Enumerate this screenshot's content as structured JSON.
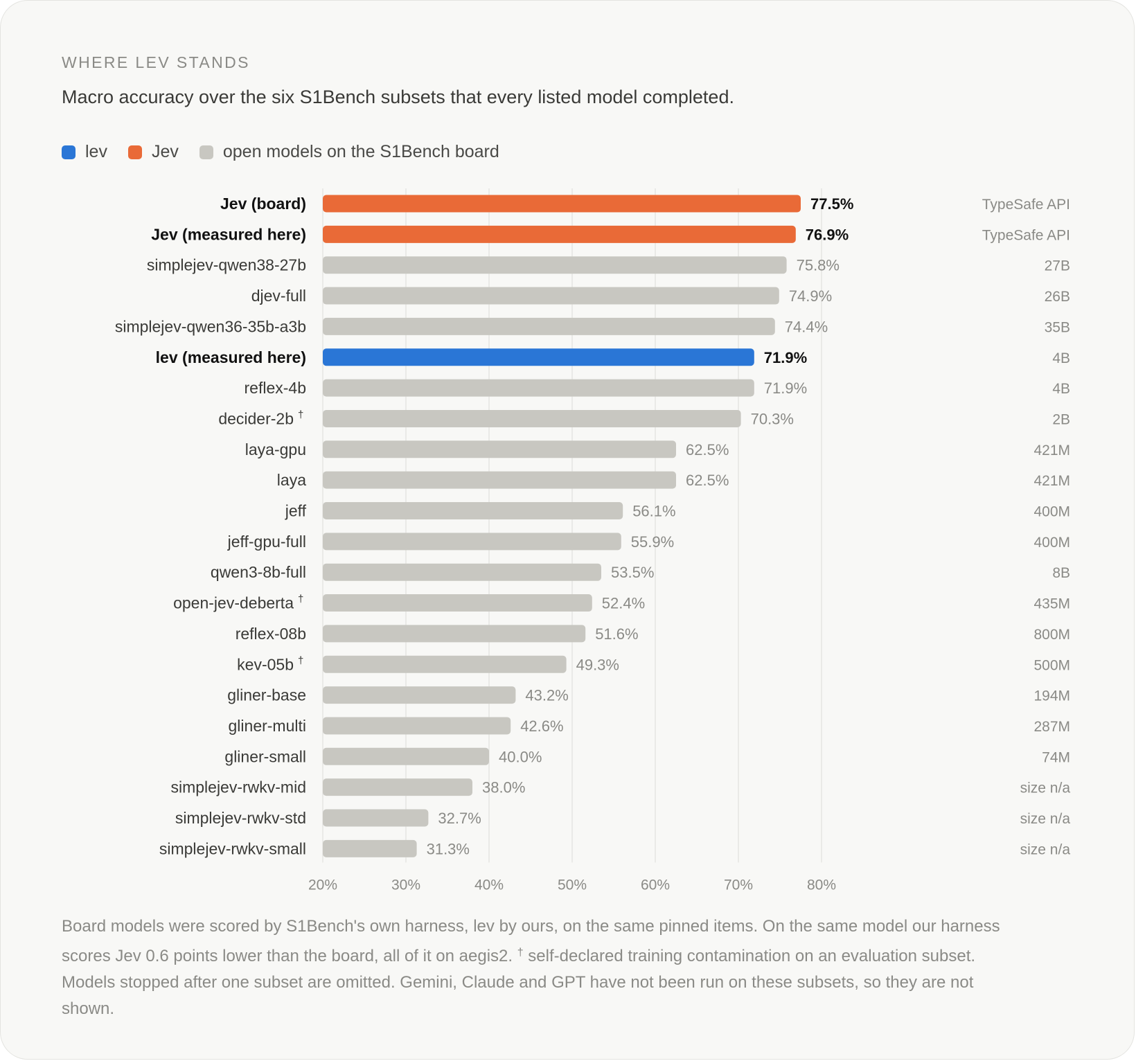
{
  "eyebrow": "WHERE LEV STANDS",
  "subtitle": "Macro accuracy over the six S1Bench subsets that every listed model completed.",
  "legend": [
    {
      "label": "lev",
      "color": "#2a76d6"
    },
    {
      "label": "Jev",
      "color": "#e96a37"
    },
    {
      "label": "open models on the S1Bench board",
      "color": "#c8c7c1"
    }
  ],
  "colors": {
    "lev": "#2a76d6",
    "jev": "#e96a37",
    "board": "#c8c7c1"
  },
  "chart_data": {
    "type": "bar",
    "orientation": "horizontal",
    "xlim": [
      20,
      80
    ],
    "x_ticks": [
      20,
      30,
      40,
      50,
      60,
      70,
      80
    ],
    "x_tick_labels": [
      "20%",
      "30%",
      "40%",
      "50%",
      "60%",
      "70%",
      "80%"
    ],
    "grid": true,
    "legend_position": "top-left",
    "rows": [
      {
        "label": "Jev (board)",
        "value": 77.5,
        "value_label": "77.5%",
        "size": "TypeSafe API",
        "group": "jev",
        "bold": true,
        "dagger": false
      },
      {
        "label": "Jev (measured here)",
        "value": 76.9,
        "value_label": "76.9%",
        "size": "TypeSafe API",
        "group": "jev",
        "bold": true,
        "dagger": false
      },
      {
        "label": "simplejev-qwen38-27b",
        "value": 75.8,
        "value_label": "75.8%",
        "size": "27B",
        "group": "board",
        "bold": false,
        "dagger": false
      },
      {
        "label": "djev-full",
        "value": 74.9,
        "value_label": "74.9%",
        "size": "26B",
        "group": "board",
        "bold": false,
        "dagger": false
      },
      {
        "label": "simplejev-qwen36-35b-a3b",
        "value": 74.4,
        "value_label": "74.4%",
        "size": "35B",
        "group": "board",
        "bold": false,
        "dagger": false
      },
      {
        "label": "lev (measured here)",
        "value": 71.9,
        "value_label": "71.9%",
        "size": "4B",
        "group": "lev",
        "bold": true,
        "dagger": false
      },
      {
        "label": "reflex-4b",
        "value": 71.9,
        "value_label": "71.9%",
        "size": "4B",
        "group": "board",
        "bold": false,
        "dagger": false
      },
      {
        "label": "decider-2b",
        "value": 70.3,
        "value_label": "70.3%",
        "size": "2B",
        "group": "board",
        "bold": false,
        "dagger": true
      },
      {
        "label": "laya-gpu",
        "value": 62.5,
        "value_label": "62.5%",
        "size": "421M",
        "group": "board",
        "bold": false,
        "dagger": false
      },
      {
        "label": "laya",
        "value": 62.5,
        "value_label": "62.5%",
        "size": "421M",
        "group": "board",
        "bold": false,
        "dagger": false
      },
      {
        "label": "jeff",
        "value": 56.1,
        "value_label": "56.1%",
        "size": "400M",
        "group": "board",
        "bold": false,
        "dagger": false
      },
      {
        "label": "jeff-gpu-full",
        "value": 55.9,
        "value_label": "55.9%",
        "size": "400M",
        "group": "board",
        "bold": false,
        "dagger": false
      },
      {
        "label": "qwen3-8b-full",
        "value": 53.5,
        "value_label": "53.5%",
        "size": "8B",
        "group": "board",
        "bold": false,
        "dagger": false
      },
      {
        "label": "open-jev-deberta",
        "value": 52.4,
        "value_label": "52.4%",
        "size": "435M",
        "group": "board",
        "bold": false,
        "dagger": true
      },
      {
        "label": "reflex-08b",
        "value": 51.6,
        "value_label": "51.6%",
        "size": "800M",
        "group": "board",
        "bold": false,
        "dagger": false
      },
      {
        "label": "kev-05b",
        "value": 49.3,
        "value_label": "49.3%",
        "size": "500M",
        "group": "board",
        "bold": false,
        "dagger": true
      },
      {
        "label": "gliner-base",
        "value": 43.2,
        "value_label": "43.2%",
        "size": "194M",
        "group": "board",
        "bold": false,
        "dagger": false
      },
      {
        "label": "gliner-multi",
        "value": 42.6,
        "value_label": "42.6%",
        "size": "287M",
        "group": "board",
        "bold": false,
        "dagger": false
      },
      {
        "label": "gliner-small",
        "value": 40.0,
        "value_label": "40.0%",
        "size": "74M",
        "group": "board",
        "bold": false,
        "dagger": false
      },
      {
        "label": "simplejev-rwkv-mid",
        "value": 38.0,
        "value_label": "38.0%",
        "size": "size n/a",
        "group": "board",
        "bold": false,
        "dagger": false
      },
      {
        "label": "simplejev-rwkv-std",
        "value": 32.7,
        "value_label": "32.7%",
        "size": "size n/a",
        "group": "board",
        "bold": false,
        "dagger": false
      },
      {
        "label": "simplejev-rwkv-small",
        "value": 31.3,
        "value_label": "31.3%",
        "size": "size n/a",
        "group": "board",
        "bold": false,
        "dagger": false
      }
    ]
  },
  "footnote": {
    "part1": "Board models were scored by S1Bench's own harness, lev by ours, on the same pinned items. On the same model our harness scores Jev 0.6 points lower than the board, all of it on aegis2.",
    "dagger": "†",
    "part2": " self-declared training contamination on an evaluation subset. Models stopped after one subset are omitted. Gemini, Claude and GPT have not been run on these subsets, so they are not shown."
  }
}
